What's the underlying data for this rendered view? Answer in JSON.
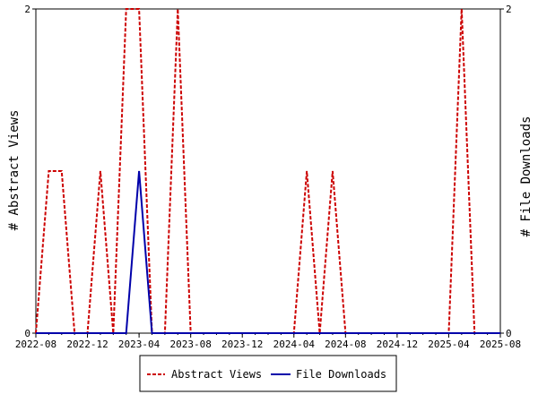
{
  "chart_data": {
    "type": "line",
    "ylabel_left": "# Abstract Views",
    "ylabel_right": "# File Downloads",
    "x_range": [
      "2022-08",
      "2025-08"
    ],
    "x_tick_labels": [
      "2022-08",
      "2022-12",
      "2023-04",
      "2023-08",
      "2023-12",
      "2024-04",
      "2024-08",
      "2024-12",
      "2025-04",
      "2025-08"
    ],
    "ylim_left": [
      0,
      2
    ],
    "ylim_right": [
      0,
      2
    ],
    "y_ticks_left": [
      "0",
      "2"
    ],
    "y_ticks_right": [
      "0",
      "2"
    ],
    "grid": false,
    "legend_position": "bottom-center",
    "x": [
      "2022-08",
      "2022-09",
      "2022-10",
      "2022-11",
      "2022-12",
      "2023-01",
      "2023-02",
      "2023-03",
      "2023-04",
      "2023-05",
      "2023-06",
      "2023-07",
      "2023-08",
      "2023-09",
      "2023-10",
      "2023-11",
      "2023-12",
      "2024-01",
      "2024-02",
      "2024-03",
      "2024-04",
      "2024-05",
      "2024-06",
      "2024-07",
      "2024-08",
      "2024-09",
      "2024-10",
      "2024-11",
      "2024-12",
      "2025-01",
      "2025-02",
      "2025-03",
      "2025-04",
      "2025-05",
      "2025-06",
      "2025-07",
      "2025-08"
    ],
    "series": [
      {
        "name": "Abstract Views",
        "axis": "left",
        "color": "#cc0000",
        "dash": true,
        "values": [
          0,
          1,
          1,
          0,
          0,
          1,
          0,
          2,
          2,
          0,
          0,
          2,
          0,
          0,
          0,
          0,
          0,
          0,
          0,
          0,
          0,
          1,
          0,
          1,
          0,
          0,
          0,
          0,
          0,
          0,
          0,
          0,
          0,
          2,
          0,
          0,
          0
        ]
      },
      {
        "name": "File Downloads",
        "axis": "right",
        "color": "#0000aa",
        "dash": false,
        "values": [
          0,
          0,
          0,
          0,
          0,
          0,
          0,
          0,
          1,
          0,
          0,
          0,
          0,
          0,
          0,
          0,
          0,
          0,
          0,
          0,
          0,
          0,
          0,
          0,
          0,
          0,
          0,
          0,
          0,
          0,
          0,
          0,
          0,
          0,
          0,
          0,
          0
        ]
      }
    ]
  }
}
